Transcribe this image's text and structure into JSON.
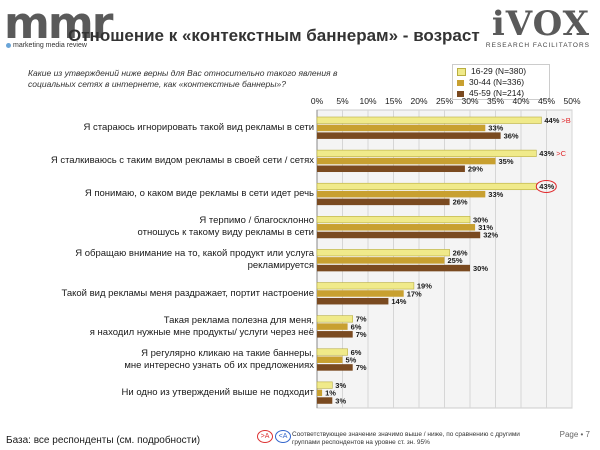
{
  "header": {
    "logo_left": "mmr",
    "logo_left_sub": "marketing media review",
    "logo_right": "iVOX",
    "logo_right_sub": "RESEARCH FACILITATORS",
    "title": "Отношение к «контекстным баннерам» - возраст"
  },
  "question": "Какие из утверждений ниже верны для Вас относительно такого явления в социальных сетях в интернете, как «контекстные баннеры»?",
  "colors": {
    "series1": "#f0ea8a",
    "series2": "#c8a030",
    "series3": "#7a4a20"
  },
  "chart_data": {
    "type": "bar",
    "orientation": "horizontal",
    "xlim": [
      0,
      50
    ],
    "x_ticks": [
      "0%",
      "5%",
      "10%",
      "15%",
      "20%",
      "25%",
      "30%",
      "35%",
      "40%",
      "45%",
      "50%"
    ],
    "legend_position": "top-right",
    "categories": [
      "Я стараюсь игнорировать такой вид рекламы в сети",
      "Я сталкиваюсь с таким видом рекламы в своей сети / сетях",
      "Я понимаю, о каком виде рекламы в сети идет речь",
      "Я терпимо / благосклонно\nотношусь к такому виду рекламы в сети",
      "Я обращаю внимание на то, какой продукт или услуга\nрекламируется",
      "Такой вид рекламы меня раздражает, портит настроение",
      "Такая реклама полезна для меня,\nя находил нужные мне продукты/ услуги через неё",
      "Я регулярно кликаю на такие баннеры,\nмне интересно узнать об их предложениях",
      "Ни одно из утверждений выше не подходит"
    ],
    "series": [
      {
        "name": "16-29 (N=380)",
        "values": [
          44,
          43,
          43,
          30,
          26,
          19,
          7,
          6,
          3
        ]
      },
      {
        "name": "30-44 (N=336)",
        "values": [
          33,
          35,
          33,
          31,
          25,
          17,
          6,
          5,
          1
        ]
      },
      {
        "name": "45-59 (N=214)",
        "values": [
          36,
          29,
          26,
          32,
          30,
          14,
          7,
          7,
          3
        ]
      }
    ],
    "annotations": [
      {
        "category_index": 0,
        "series_index": 0,
        "text": ">B"
      },
      {
        "category_index": 1,
        "series_index": 0,
        "text": ">C"
      }
    ],
    "circled": [
      {
        "category_index": 2,
        "series_index": 0
      }
    ]
  },
  "footer": {
    "base": "База: все респонденты (см. подробности)",
    "sig_higher": ">A",
    "sig_lower": "<A",
    "note": "Соответствующее значение значимо выше / ниже, по сравнению с другими группами респондентов на уровне ст. зн. 95%",
    "page": "Page • 7"
  }
}
